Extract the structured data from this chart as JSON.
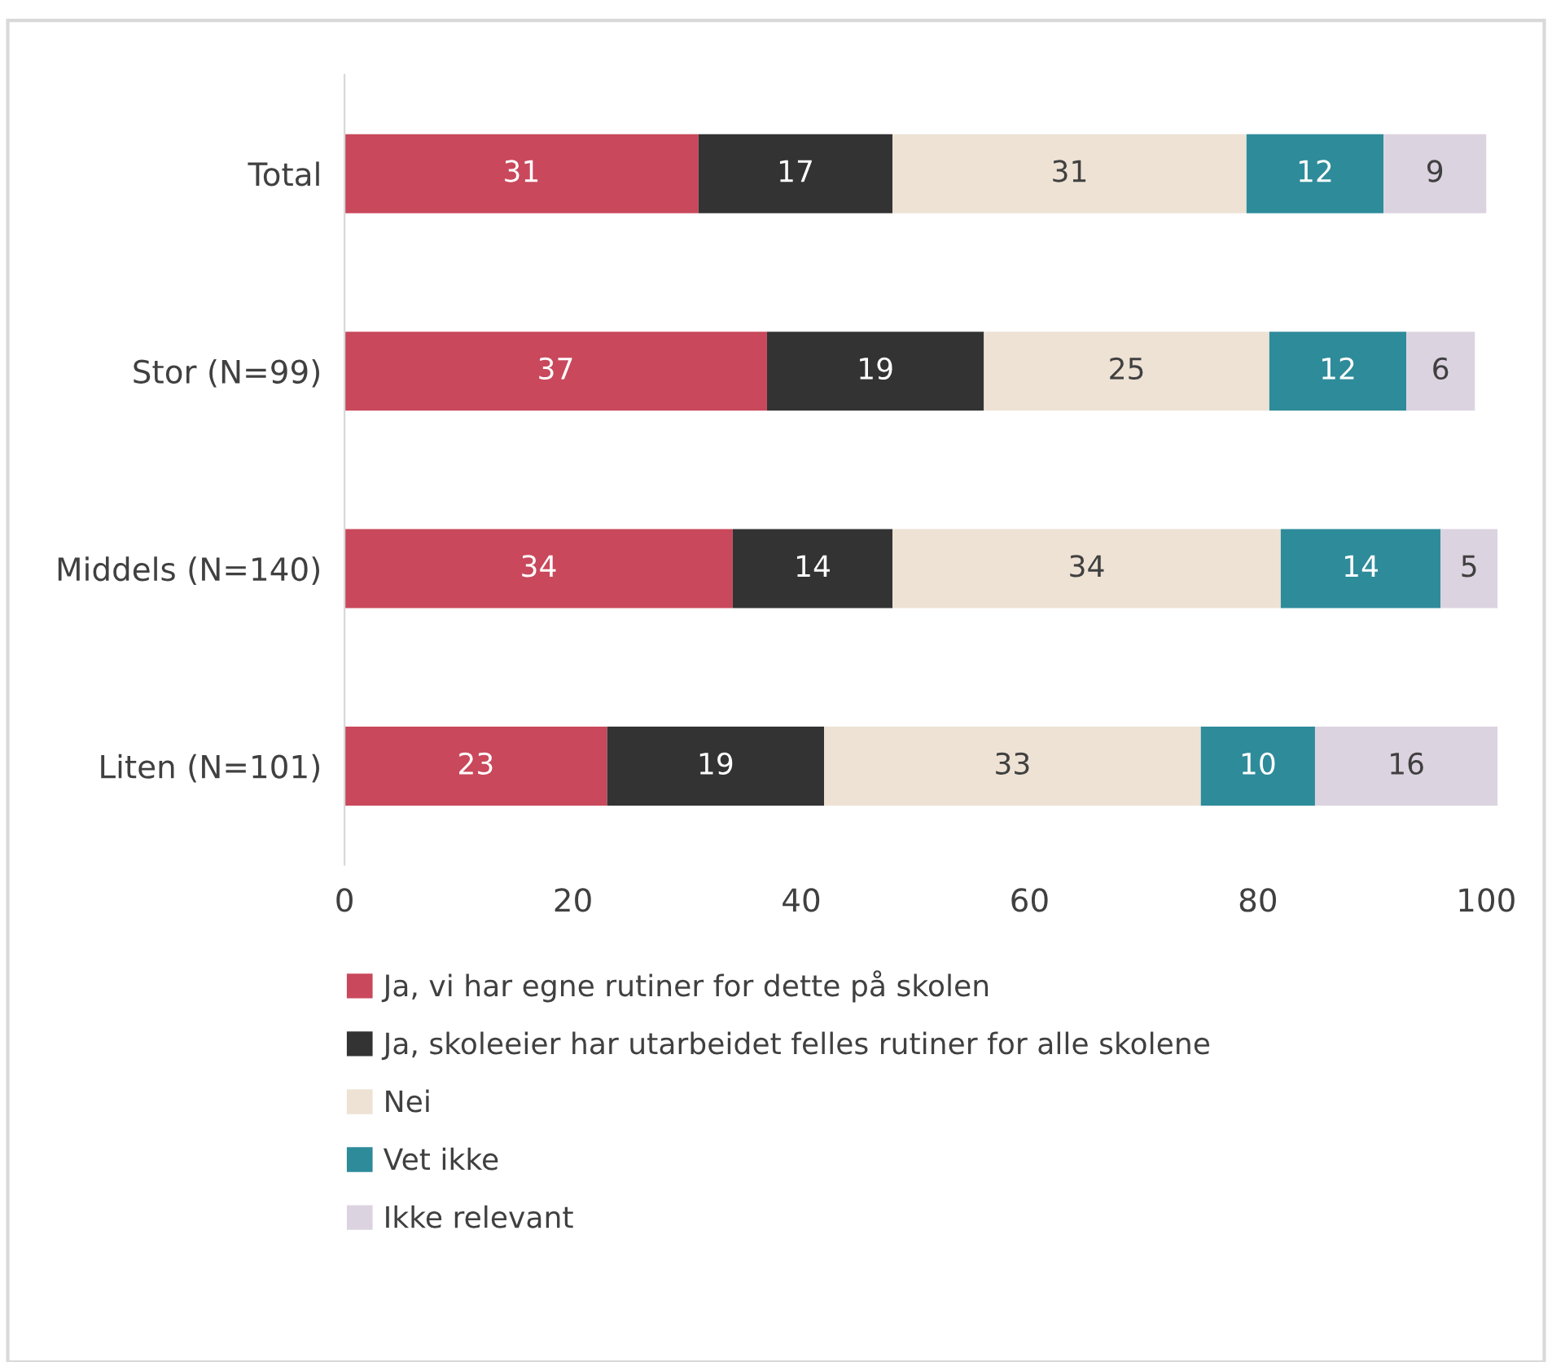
{
  "chart_data": {
    "type": "bar",
    "orientation": "horizontal",
    "stacked": true,
    "data_labels": true,
    "grid": false,
    "legend": "bottom",
    "categories": [
      "Total",
      "Stor (N=99)",
      "Middels (N=140)",
      "Liten (N=101)"
    ],
    "series": [
      {
        "name": "Ja, vi har egne rutiner for dette på skolen",
        "color": "#c9485b",
        "values": [
          31,
          37,
          34,
          23
        ]
      },
      {
        "name": "Ja, skoleeier har utarbeidet felles rutiner for alle skolene",
        "color": "#333333",
        "values": [
          17,
          19,
          14,
          19
        ]
      },
      {
        "name": "Nei",
        "color": "#ede2d4",
        "values": [
          31,
          25,
          34,
          33
        ]
      },
      {
        "name": "Vet ikke",
        "color": "#2e8b9a",
        "values": [
          12,
          12,
          14,
          10
        ]
      },
      {
        "name": "Ikke relevant",
        "color": "#dcd3e0",
        "values": [
          9,
          6,
          5,
          16
        ]
      }
    ],
    "xlim": [
      0,
      101
    ],
    "xticks": [
      0,
      20,
      40,
      60,
      80,
      100
    ]
  }
}
